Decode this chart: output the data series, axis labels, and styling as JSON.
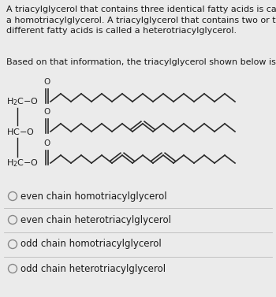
{
  "background_color": "#ebebeb",
  "text_color": "#1a1a1a",
  "chain_color": "#2a2a2a",
  "paragraph_text": "A triacylglycerol that contains three identical fatty acids is called\na homotriacylglycerol. A triacylglycerol that contains two or three\ndifferent fatty acids is called a heterotriacylglycerol.",
  "question_text": "Based on that information, the triacylglycerol shown below is an:",
  "options": [
    "even chain homotriacylglycerol",
    "even chain heterotriacylglycerol",
    "odd chain homotriacylglycerol",
    "odd chain heterotriacylglycerol"
  ],
  "font_size_para": 8.0,
  "font_size_chem": 8.0,
  "font_size_options": 8.5,
  "glycerol_labels": [
    "H₂C–O",
    "HC–O",
    "H₂C–O"
  ],
  "sep_line_color": "#bbbbbb",
  "circle_color": "#888888"
}
